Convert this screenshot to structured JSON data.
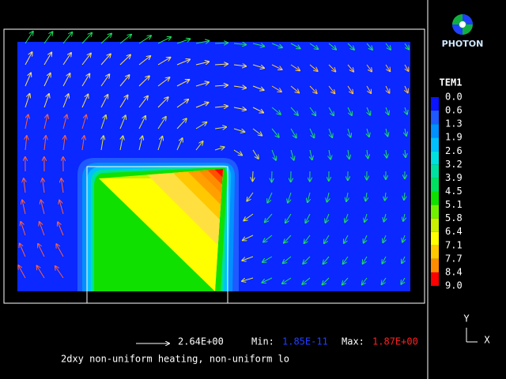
{
  "logo": {
    "text": "PHOTON"
  },
  "legend": {
    "title": "TEM1",
    "labels": [
      "0.0",
      "0.6",
      "1.3",
      "1.9",
      "2.6",
      "3.2",
      "3.9",
      "4.5",
      "5.1",
      "5.8",
      "6.4",
      "7.1",
      "7.7",
      "8.4",
      "9.0"
    ],
    "colors": [
      "#0a14ff",
      "#1e5aff",
      "#0090ff",
      "#00c0ff",
      "#00e0e0",
      "#00e0a0",
      "#00e060",
      "#10e000",
      "#70f000",
      "#c8f000",
      "#ffff00",
      "#ffc800",
      "#ff8c00",
      "#ff0000"
    ]
  },
  "status": {
    "vector_scale": "2.64E+00",
    "min_label": "Min:",
    "min_value": "1.85E-11",
    "max_label": "Max:",
    "max_value": "1.87E+00"
  },
  "caption": "2dxy non-uniform heating, non-uniform lo",
  "axes": {
    "y": "Y",
    "x": "X"
  }
}
